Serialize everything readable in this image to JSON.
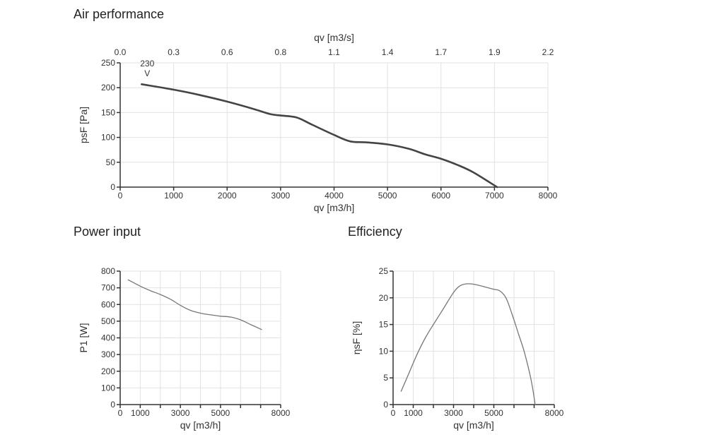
{
  "titles": {
    "air": "Air performance",
    "power": "Power input",
    "efficiency": "Efficiency"
  },
  "colors": {
    "curve_main": "#444444",
    "curve_thin": "#777777",
    "grid": "#e2e2e2"
  },
  "chart_data": [
    {
      "type": "line",
      "title": "Air performance",
      "xlabel": "qv [m3/h]",
      "x2label": "qv [m3/s]",
      "ylabel": "psF [Pa]",
      "xlim": [
        0,
        8000
      ],
      "ylim": [
        0,
        250
      ],
      "xticks": [
        "0",
        "1000",
        "2000",
        "3000",
        "4000",
        "5000",
        "6000",
        "7000",
        "8000"
      ],
      "x2ticks": [
        "0.0",
        "0.3",
        "0.6",
        "0.8",
        "1.1",
        "1.4",
        "1.7",
        "1.9",
        "2.2"
      ],
      "yticks": [
        "0",
        "50",
        "100",
        "150",
        "200",
        "250"
      ],
      "grid": true,
      "series": [
        {
          "name": "230 V",
          "x": [
            400,
            1000,
            1500,
            2000,
            2500,
            2800,
            3000,
            3300,
            3600,
            4000,
            4300,
            4600,
            5000,
            5400,
            5700,
            6000,
            6300,
            6600,
            7050
          ],
          "y": [
            207,
            196,
            185,
            172,
            157,
            147,
            144,
            140,
            125,
            105,
            92,
            90,
            86,
            77,
            66,
            57,
            45,
            30,
            0
          ]
        }
      ],
      "annotation": "230\nV",
      "annotation_lines": [
        "230",
        "V"
      ]
    },
    {
      "type": "line",
      "title": "Power input",
      "xlabel": "qv [m3/h]",
      "ylabel": "P1 [W]",
      "xlim": [
        0,
        8000
      ],
      "ylim": [
        0,
        800
      ],
      "xticks": [
        "0",
        "1000",
        "3000",
        "5000",
        "8000"
      ],
      "xtick_values": [
        0,
        1000,
        3000,
        5000,
        8000
      ],
      "xgrid_values": [
        0,
        1000,
        2000,
        3000,
        4000,
        5000,
        6000,
        7000,
        8000
      ],
      "yticks": [
        "0",
        "100",
        "200",
        "300",
        "400",
        "500",
        "600",
        "700",
        "800"
      ],
      "grid": true,
      "series": [
        {
          "name": "230 V",
          "x": [
            400,
            1000,
            1500,
            2000,
            2500,
            3000,
            3500,
            4000,
            4500,
            5000,
            5500,
            6000,
            6500,
            7050
          ],
          "y": [
            748,
            710,
            683,
            660,
            632,
            595,
            565,
            548,
            538,
            530,
            525,
            508,
            480,
            450
          ]
        }
      ]
    },
    {
      "type": "line",
      "title": "Efficiency",
      "xlabel": "qv [m3/h]",
      "ylabel": "ηsF [%]",
      "xlim": [
        0,
        8000
      ],
      "ylim": [
        0,
        25
      ],
      "xticks": [
        "0",
        "1000",
        "3000",
        "5000",
        "8000"
      ],
      "xtick_values": [
        0,
        1000,
        3000,
        5000,
        8000
      ],
      "xgrid_values": [
        0,
        1000,
        2000,
        3000,
        4000,
        5000,
        6000,
        7000,
        8000
      ],
      "yticks": [
        "0",
        "5",
        "10",
        "15",
        "20",
        "25"
      ],
      "grid": true,
      "series": [
        {
          "name": "230 V",
          "x": [
            400,
            800,
            1200,
            1600,
            2000,
            2500,
            3000,
            3300,
            3600,
            3900,
            4200,
            4600,
            5000,
            5300,
            5600,
            5900,
            6200,
            6500,
            6800,
            6950,
            7050
          ],
          "y": [
            2.5,
            6,
            9.5,
            12.5,
            15,
            18,
            21,
            22.2,
            22.6,
            22.6,
            22.4,
            22,
            21.6,
            21.3,
            20,
            17,
            13.5,
            10,
            5.5,
            2.5,
            0
          ]
        }
      ]
    }
  ]
}
